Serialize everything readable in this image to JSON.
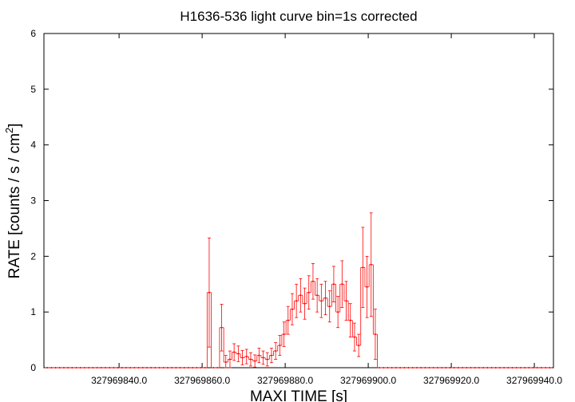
{
  "chart_data": {
    "type": "errorstep",
    "title": "H1636-536 light curve bin=1s corrected",
    "x_label": "MAXI TIME [s]",
    "y_label": [
      "RATE [counts / s / cm",
      "2",
      "]"
    ],
    "xlim": [
      327969821.9,
      327969944.6
    ],
    "ylim": [
      0,
      6
    ],
    "xticks": [
      {
        "value": 327969840,
        "label": "327969840.0"
      },
      {
        "value": 327969860,
        "label": "327969860.0"
      },
      {
        "value": 327969880,
        "label": "327969880.0"
      },
      {
        "value": 327969900,
        "label": "327969900.0"
      },
      {
        "value": 327969920,
        "label": "327969920.0"
      },
      {
        "value": 327969940,
        "label": "327969940.0"
      }
    ],
    "yticks": [
      0,
      1,
      2,
      3,
      4,
      5,
      6
    ],
    "color": "#ff0000",
    "x": [
      327969822.7,
      327969823.7,
      327969824.7,
      327969825.7,
      327969826.7,
      327969827.7,
      327969828.7,
      327969829.7,
      327969830.7,
      327969831.7,
      327969832.7,
      327969833.7,
      327969834.7,
      327969835.7,
      327969836.7,
      327969837.7,
      327969838.7,
      327969839.7,
      327969840.7,
      327969841.7,
      327969842.7,
      327969843.7,
      327969844.7,
      327969845.7,
      327969846.7,
      327969847.7,
      327969848.7,
      327969849.7,
      327969850.7,
      327969851.7,
      327969852.7,
      327969853.7,
      327969854.7,
      327969855.7,
      327969856.7,
      327969857.7,
      327969858.7,
      327969859.7,
      327969860.7,
      327969861.7,
      327969862.7,
      327969863.7,
      327969864.7,
      327969865.7,
      327969866.7,
      327969867.7,
      327969868.7,
      327969869.7,
      327969870.7,
      327969871.7,
      327969872.7,
      327969873.7,
      327969874.7,
      327969875.7,
      327969876.7,
      327969877.7,
      327969878.7,
      327969879.7,
      327969880.7,
      327969881.7,
      327969882.7,
      327969883.7,
      327969884.7,
      327969885.7,
      327969886.7,
      327969887.7,
      327969888.7,
      327969889.7,
      327969890.7,
      327969891.7,
      327969892.7,
      327969893.7,
      327969894.7,
      327969895.7,
      327969896.7,
      327969897.7,
      327969898.7,
      327969899.7,
      327969900.7,
      327969901.7,
      327969902.7,
      327969903.7,
      327969904.7,
      327969905.7,
      327969906.7,
      327969907.7,
      327969908.7,
      327969909.7,
      327969910.7,
      327969911.7,
      327969912.7,
      327969913.7,
      327969914.7,
      327969915.7,
      327969916.7,
      327969917.7,
      327969918.7,
      327969919.7,
      327969920.7,
      327969921.7,
      327969922.7,
      327969923.7,
      327969924.7,
      327969925.7,
      327969926.7,
      327969927.7,
      327969928.7,
      327969929.7,
      327969930.7,
      327969931.7,
      327969932.7,
      327969933.7,
      327969934.7,
      327969935.7,
      327969936.7,
      327969937.7,
      327969938.7,
      327969939.7,
      327969940.7,
      327969941.7,
      327969942.7,
      327969943.7
    ],
    "values": [
      0,
      0,
      0,
      0,
      0,
      0,
      0,
      0,
      0,
      0,
      0,
      0,
      0,
      0,
      0,
      0,
      0,
      0,
      0,
      0,
      0,
      0,
      0,
      0,
      0,
      0,
      0,
      0,
      0,
      0,
      0,
      0,
      0,
      0,
      0,
      0,
      0,
      0,
      0,
      1.35,
      0,
      0,
      0.72,
      0.1,
      0.15,
      0.28,
      0.25,
      0.18,
      0.2,
      0.15,
      0.12,
      0.22,
      0.18,
      0.15,
      0.22,
      0.3,
      0.4,
      0.6,
      0.85,
      1.05,
      1.2,
      1.3,
      1.15,
      1.35,
      1.55,
      1.3,
      1.2,
      1.25,
      1.1,
      1.5,
      1.0,
      1.5,
      1.2,
      0.85,
      0.55,
      0.4,
      1.8,
      1.45,
      1.85,
      0.6,
      0,
      0,
      0,
      0,
      0,
      0,
      0,
      0,
      0,
      0,
      0,
      0,
      0,
      0,
      0,
      0,
      0,
      0,
      0,
      0,
      0,
      0,
      0,
      0,
      0,
      0,
      0,
      0,
      0,
      0,
      0,
      0,
      0,
      0,
      0,
      0,
      0,
      0,
      0,
      0,
      0,
      0
    ],
    "errors": [
      0,
      0,
      0,
      0,
      0,
      0,
      0,
      0,
      0,
      0,
      0,
      0,
      0,
      0,
      0,
      0,
      0,
      0,
      0,
      0,
      0,
      0,
      0,
      0,
      0,
      0,
      0,
      0,
      0,
      0,
      0,
      0,
      0,
      0,
      0,
      0,
      0,
      0,
      0,
      0.98,
      0,
      0,
      0.42,
      0.12,
      0.15,
      0.15,
      0.14,
      0.13,
      0.13,
      0.12,
      0.11,
      0.13,
      0.12,
      0.12,
      0.13,
      0.15,
      0.18,
      0.22,
      0.25,
      0.28,
      0.3,
      0.3,
      0.28,
      0.3,
      0.32,
      0.3,
      0.3,
      0.3,
      0.28,
      0.32,
      0.28,
      0.42,
      0.35,
      0.3,
      0.25,
      0.2,
      0.72,
      0.55,
      0.93,
      0.45,
      0,
      0,
      0,
      0,
      0,
      0,
      0,
      0,
      0,
      0,
      0,
      0,
      0,
      0,
      0,
      0,
      0,
      0,
      0,
      0,
      0,
      0,
      0,
      0,
      0,
      0,
      0,
      0,
      0,
      0,
      0,
      0,
      0,
      0,
      0,
      0,
      0,
      0,
      0,
      0,
      0,
      0
    ]
  }
}
